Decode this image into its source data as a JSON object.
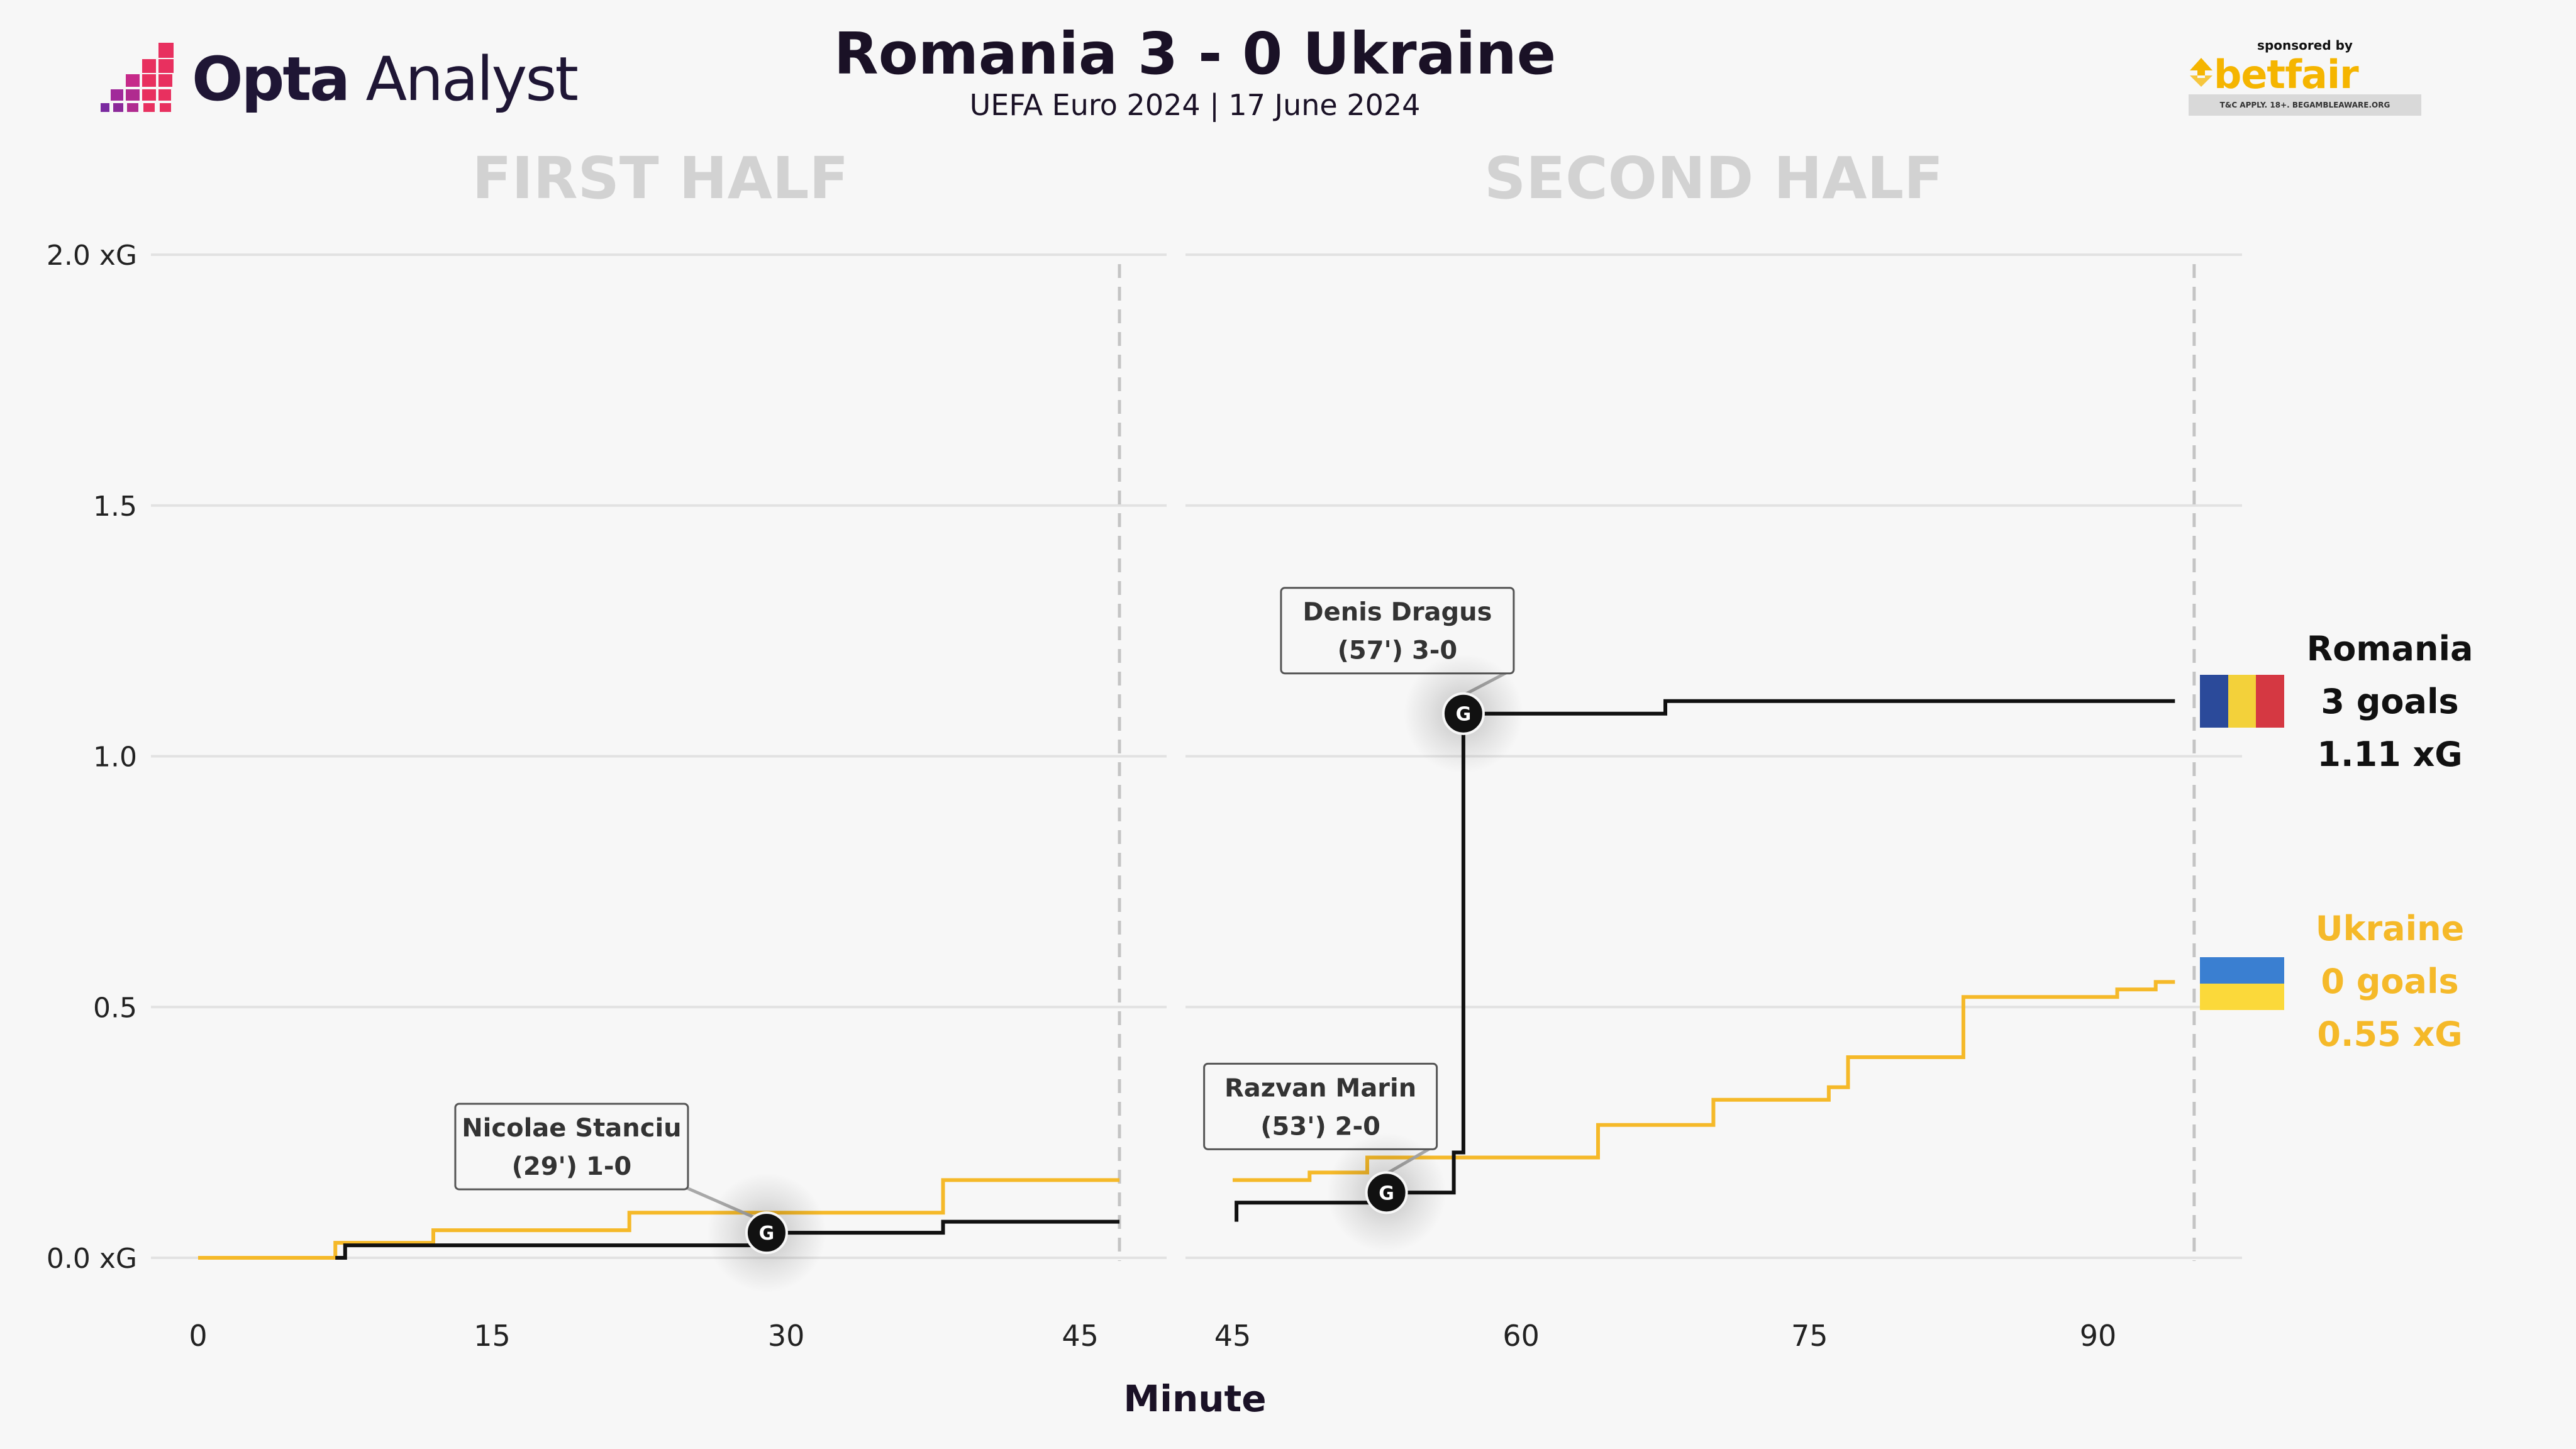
{
  "brand": {
    "name_bold": "Opta",
    "name_light": " Analyst"
  },
  "header": {
    "title": "Romania 3 - 0 Ukraine",
    "subtitle": "UEFA Euro 2024 | 17 June 2024"
  },
  "sponsor": {
    "by": "sponsored by",
    "name": "betfair",
    "disclaimer": "T&C APPLY. 18+. BEGAMBLEAWARE.ORG"
  },
  "colors": {
    "romania": "#111111",
    "ukraine": "#f5b929",
    "grid": "#e2e2e2",
    "half_label": "#d2d2d2"
  },
  "teams": {
    "romania": {
      "name": "Romania",
      "goals": "3 goals",
      "xg": "1.11 xG",
      "flag_colors": [
        "#2b4a9a",
        "#f3d13a",
        "#d53842"
      ]
    },
    "ukraine": {
      "name": "Ukraine",
      "goals": "0 goals",
      "xg": "0.55 xG",
      "flag_colors": [
        "#3a7fd1",
        "#fbd93a"
      ]
    }
  },
  "chart_data": {
    "type": "line",
    "title": "Romania 3 - 0 Ukraine",
    "xlabel": "Minute",
    "ylabel": "",
    "ylim": [
      0,
      2.0
    ],
    "yticks": [
      {
        "value": 0.0,
        "label": "0.0 xG"
      },
      {
        "value": 0.5,
        "label": "0.5"
      },
      {
        "value": 1.0,
        "label": "1.0"
      },
      {
        "value": 1.5,
        "label": "1.5"
      },
      {
        "value": 2.0,
        "label": "2.0 xG"
      }
    ],
    "panels": [
      {
        "name": "FIRST HALF",
        "xlim": [
          0,
          47
        ],
        "xticks": [
          0,
          15,
          30,
          45
        ],
        "end_minute": 47,
        "series": [
          {
            "name": "Ukraine",
            "color": "#f5b929",
            "points": [
              [
                0,
                0.0
              ],
              [
                7,
                0.0
              ],
              [
                7,
                0.03
              ],
              [
                12,
                0.03
              ],
              [
                12,
                0.055
              ],
              [
                22,
                0.055
              ],
              [
                22,
                0.09
              ],
              [
                38,
                0.09
              ],
              [
                38,
                0.155
              ],
              [
                47,
                0.155
              ]
            ]
          },
          {
            "name": "Romania",
            "color": "#111111",
            "points": [
              [
                7,
                0.0
              ],
              [
                7.5,
                0.0
              ],
              [
                7.5,
                0.025
              ],
              [
                29,
                0.025
              ],
              [
                29,
                0.05
              ],
              [
                38,
                0.05
              ],
              [
                38,
                0.072
              ],
              [
                47,
                0.072
              ]
            ]
          }
        ],
        "goals": [
          {
            "minute": 29,
            "xg": 0.05,
            "player": "Nicolae Stanciu",
            "detail": "(29') 1-0"
          }
        ]
      },
      {
        "name": "SECOND HALF",
        "xlim": [
          45,
          97
        ],
        "xticks": [
          45,
          60,
          75,
          90
        ],
        "end_minute": 95,
        "series": [
          {
            "name": "Ukraine",
            "color": "#f5b929",
            "points": [
              [
                45,
                0.155
              ],
              [
                49,
                0.155
              ],
              [
                49,
                0.17
              ],
              [
                52,
                0.17
              ],
              [
                52,
                0.2
              ],
              [
                64,
                0.2
              ],
              [
                64,
                0.265
              ],
              [
                70,
                0.265
              ],
              [
                70,
                0.315
              ],
              [
                76,
                0.315
              ],
              [
                76,
                0.34
              ],
              [
                77,
                0.34
              ],
              [
                77,
                0.4
              ],
              [
                83,
                0.4
              ],
              [
                83,
                0.52
              ],
              [
                91,
                0.52
              ],
              [
                91,
                0.535
              ],
              [
                93,
                0.535
              ],
              [
                93,
                0.55
              ],
              [
                94,
                0.55
              ]
            ]
          },
          {
            "name": "Romania",
            "color": "#111111",
            "points": [
              [
                45.2,
                0.072
              ],
              [
                45.2,
                0.11
              ],
              [
                53,
                0.11
              ],
              [
                53,
                0.13
              ],
              [
                56.5,
                0.13
              ],
              [
                56.5,
                0.21
              ],
              [
                57,
                0.21
              ],
              [
                57,
                1.085
              ],
              [
                67.5,
                1.085
              ],
              [
                67.5,
                1.11
              ],
              [
                94,
                1.11
              ]
            ]
          }
        ],
        "goals": [
          {
            "minute": 53,
            "xg": 0.13,
            "player": "Razvan Marin",
            "detail": "(53') 2-0"
          },
          {
            "minute": 57,
            "xg": 1.085,
            "player": "Denis Dragus",
            "detail": "(57') 3-0"
          }
        ]
      }
    ]
  }
}
